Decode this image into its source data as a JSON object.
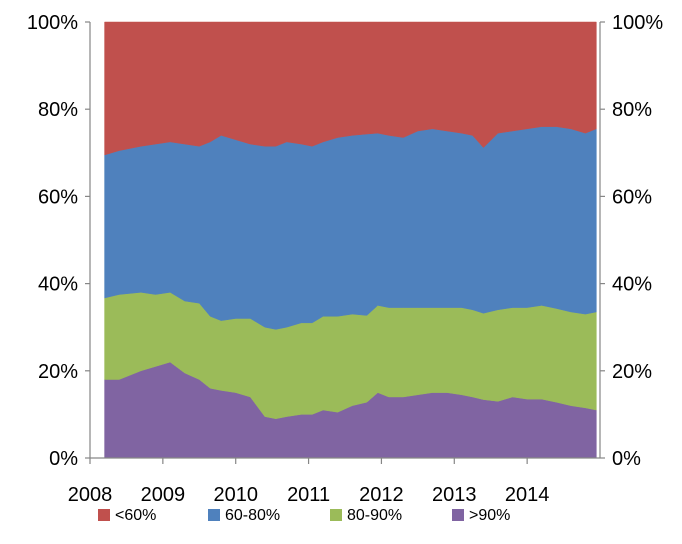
{
  "chart_data": {
    "type": "area",
    "stacked": true,
    "grid": false,
    "legend_position": "bottom",
    "x_axis": {
      "min": 2008,
      "max": 2015,
      "ticks": [
        "2008",
        "2009",
        "2010",
        "2011",
        "2012",
        "2013",
        "2014"
      ]
    },
    "y_axis": {
      "min": 0,
      "max": 100,
      "ticks": [
        "0%",
        "20%",
        "40%",
        "60%",
        "80%",
        "100%"
      ],
      "secondary_ticks": [
        "0%",
        "20%",
        "40%",
        "60%",
        "80%",
        "100%"
      ]
    },
    "x": [
      2008.2,
      2008.4,
      2008.7,
      2008.9,
      2009.1,
      2009.3,
      2009.5,
      2009.65,
      2009.8,
      2010.0,
      2010.2,
      2010.4,
      2010.55,
      2010.7,
      2010.9,
      2011.05,
      2011.2,
      2011.4,
      2011.6,
      2011.8,
      2011.95,
      2012.1,
      2012.3,
      2012.5,
      2012.7,
      2012.9,
      2013.1,
      2013.25,
      2013.4,
      2013.6,
      2013.8,
      2014.0,
      2014.2,
      2014.4,
      2014.6,
      2014.8,
      2014.95
    ],
    "series": [
      {
        "name": "<60%",
        "color": "#c0504d",
        "values": [
          30.5,
          29.5,
          28.5,
          28.0,
          27.5,
          28.0,
          28.5,
          27.5,
          26.0,
          27.0,
          28.0,
          28.5,
          28.5,
          27.5,
          28.0,
          28.5,
          27.5,
          26.5,
          26.0,
          25.7,
          25.5,
          26.0,
          26.5,
          25.0,
          24.5,
          25.0,
          25.5,
          26.0,
          28.8,
          25.5,
          25.0,
          24.5,
          24.0,
          24.0,
          24.5,
          25.5,
          24.5
        ]
      },
      {
        "name": "60-80%",
        "color": "#4f81bd",
        "values": [
          32.8,
          33.0,
          33.5,
          34.5,
          34.5,
          36.0,
          36.0,
          40.0,
          42.5,
          41.0,
          40.0,
          41.5,
          42.0,
          42.5,
          41.0,
          40.5,
          40.0,
          41.0,
          41.0,
          41.6,
          39.5,
          39.5,
          39.0,
          40.5,
          41.0,
          40.5,
          40.0,
          40.0,
          38.0,
          40.5,
          40.5,
          41.0,
          41.0,
          41.7,
          42.0,
          41.5,
          42.0
        ]
      },
      {
        "name": "80-90%",
        "color": "#9bbb59",
        "values": [
          18.7,
          19.5,
          18.0,
          16.5,
          16.0,
          16.5,
          17.5,
          16.5,
          16.0,
          17.0,
          18.0,
          20.5,
          20.5,
          20.5,
          21.0,
          21.0,
          21.5,
          22.0,
          21.0,
          19.9,
          20.0,
          20.5,
          20.5,
          20.0,
          19.5,
          19.5,
          20.0,
          20.0,
          19.8,
          21.0,
          20.5,
          21.0,
          21.5,
          21.5,
          21.5,
          21.5,
          22.5
        ]
      },
      {
        "name": ">90%",
        "color": "#8064a2",
        "values": [
          18.0,
          18.0,
          20.0,
          21.0,
          22.0,
          19.5,
          18.0,
          16.0,
          15.5,
          15.0,
          14.0,
          9.5,
          9.0,
          9.5,
          10.0,
          10.0,
          11.0,
          10.5,
          12.0,
          12.8,
          15.0,
          14.0,
          14.0,
          14.5,
          15.0,
          15.0,
          14.5,
          14.0,
          13.4,
          13.0,
          14.0,
          13.5,
          13.5,
          12.8,
          12.0,
          11.5,
          11.0
        ]
      }
    ]
  },
  "legend": {
    "items": [
      {
        "label": "<60%",
        "color": "#c0504d"
      },
      {
        "label": "60-80%",
        "color": "#4f81bd"
      },
      {
        "label": "80-90%",
        "color": "#9bbb59"
      },
      {
        "label": ">90%",
        "color": "#8064a2"
      }
    ]
  }
}
